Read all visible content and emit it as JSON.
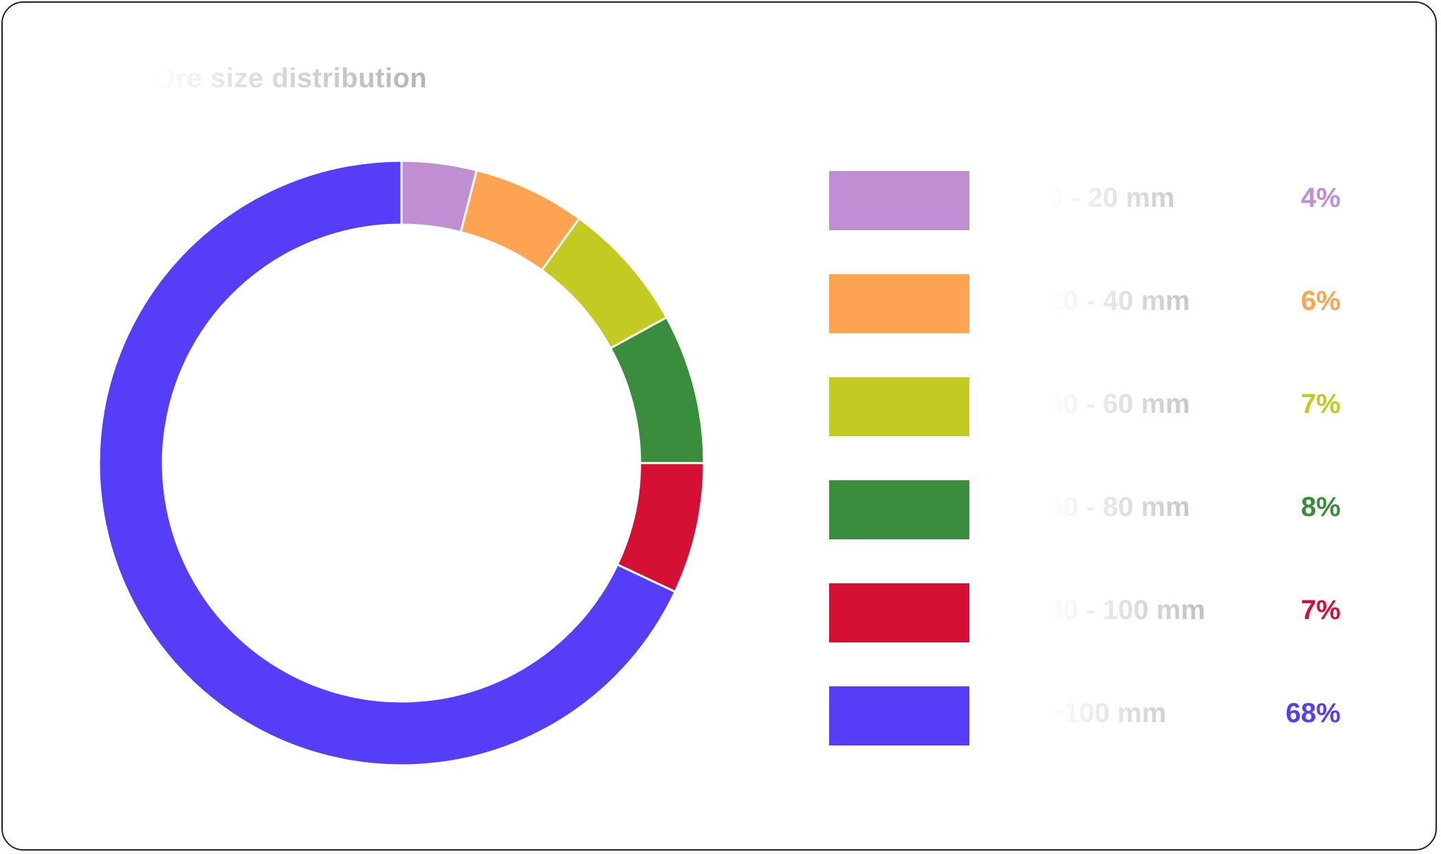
{
  "chart_data": {
    "type": "pie",
    "title": "Ore size distribution",
    "categories": [
      "0 - 20 mm",
      "20 - 40 mm",
      "40 - 60 mm",
      "60 - 80 mm",
      "80 - 100 mm",
      ">100 mm"
    ],
    "values": [
      4,
      6,
      7,
      8,
      7,
      68
    ],
    "value_labels": [
      "4%",
      "6%",
      "7%",
      "8%",
      "7%",
      "68%"
    ],
    "colors": [
      "#c08fd3",
      "#fea352",
      "#c3ca22",
      "#3a8d3c",
      "#d41135",
      "#563df7"
    ],
    "legend": "right"
  }
}
